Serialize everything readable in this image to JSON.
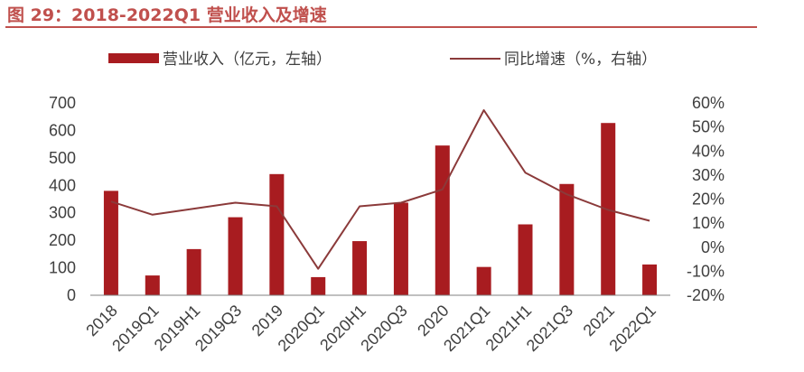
{
  "figure_title": "图 29：2018-2022Q1 营业收入及增速",
  "colors": {
    "title": "#c0504d",
    "bar": "#a81c20",
    "line": "#8b3a3a",
    "text": "#404040",
    "axis": "#808080"
  },
  "chart_data": {
    "type": "bar",
    "categories": [
      "2018",
      "2019Q1",
      "2019H1",
      "2019Q3",
      "2019",
      "2020Q1",
      "2020H1",
      "2020Q3",
      "2020",
      "2021Q1",
      "2021H1",
      "2021Q3",
      "2021",
      "2022Q1"
    ],
    "series": [
      {
        "name": "营业收入（亿元，左轴）",
        "type": "bar",
        "axis": "left",
        "values": [
          380,
          72,
          168,
          284,
          441,
          66,
          197,
          337,
          545,
          103,
          258,
          405,
          627,
          112
        ]
      },
      {
        "name": "同比增速（%，右轴）",
        "type": "line",
        "axis": "right",
        "values": [
          19,
          13.5,
          16,
          18.5,
          17,
          -9,
          17,
          18.5,
          24,
          57,
          31,
          22,
          15.5,
          11
        ]
      }
    ],
    "y_left": {
      "lim": [
        0,
        700
      ],
      "ticks": [
        "0",
        "100",
        "200",
        "300",
        "400",
        "500",
        "600",
        "700"
      ]
    },
    "y_right": {
      "lim": [
        -20,
        60
      ],
      "ticks": [
        "-20%",
        "-10%",
        "0%",
        "10%",
        "20%",
        "30%",
        "40%",
        "50%",
        "60%"
      ]
    },
    "grid": false,
    "legend_position": "top"
  }
}
